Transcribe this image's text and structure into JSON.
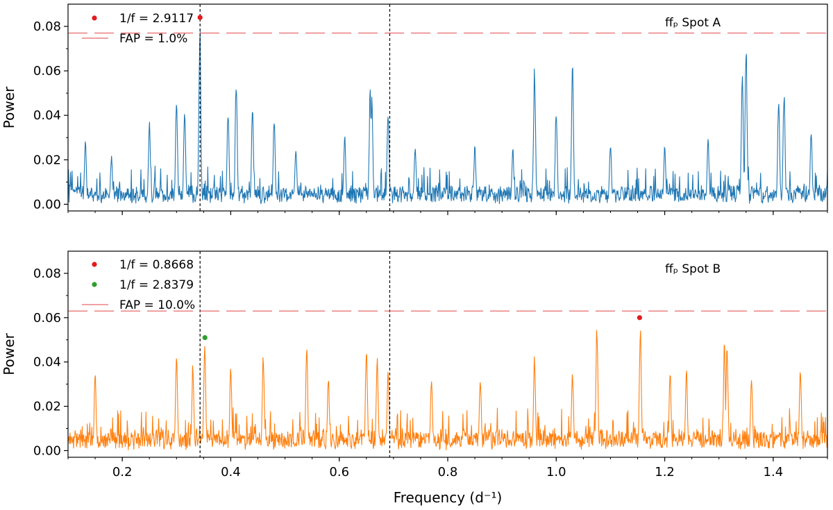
{
  "chart_data": [
    {
      "type": "line",
      "panel": "top",
      "annotation": "ffₚ Spot A",
      "ylabel": "Power",
      "xlabel": "",
      "xlim": [
        0.1,
        1.5
      ],
      "ylim": [
        -0.003,
        0.09
      ],
      "yticks": [
        0.0,
        0.02,
        0.04,
        0.06,
        0.08
      ],
      "ytick_labels": [
        "0.00",
        "0.02",
        "0.04",
        "0.06",
        "0.08"
      ],
      "show_xtick_labels": false,
      "series": [
        {
          "color": "#1f77b4",
          "baseline": 0.007,
          "noise_amp": 0.007,
          "seed": 11,
          "peaks": [
            [
              0.132,
              0.03
            ],
            [
              0.18,
              0.022
            ],
            [
              0.25,
              0.038
            ],
            [
              0.3,
              0.048
            ],
            [
              0.315,
              0.045
            ],
            [
              0.343,
              0.084
            ],
            [
              0.395,
              0.045
            ],
            [
              0.41,
              0.059
            ],
            [
              0.44,
              0.044
            ],
            [
              0.48,
              0.042
            ],
            [
              0.52,
              0.028
            ],
            [
              0.61,
              0.032
            ],
            [
              0.657,
              0.053
            ],
            [
              0.66,
              0.049
            ],
            [
              0.69,
              0.045
            ],
            [
              0.74,
              0.028
            ],
            [
              0.85,
              0.028
            ],
            [
              0.92,
              0.027
            ],
            [
              0.96,
              0.066
            ],
            [
              1.0,
              0.046
            ],
            [
              1.03,
              0.065
            ],
            [
              1.1,
              0.03
            ],
            [
              1.2,
              0.028
            ],
            [
              1.28,
              0.032
            ],
            [
              1.343,
              0.063
            ],
            [
              1.35,
              0.075
            ],
            [
              1.41,
              0.05
            ],
            [
              1.42,
              0.054
            ],
            [
              1.47,
              0.037
            ]
          ]
        }
      ],
      "vlines": [
        0.3434,
        0.6931
      ],
      "fap_level": 0.077,
      "markers": [
        {
          "x": 0.3434,
          "y": 0.084,
          "color": "#e41a1c"
        }
      ],
      "legend": [
        {
          "kind": "dot",
          "color": "#e41a1c",
          "label": "1/f = 2.9117"
        },
        {
          "kind": "line",
          "color": "#e8696b",
          "label": "FAP = 1.0%"
        }
      ]
    },
    {
      "type": "line",
      "panel": "bottom",
      "annotation": "ffₚ Spot B",
      "ylabel": "Power",
      "xlabel": "Frequency (d⁻¹)",
      "xlim": [
        0.1,
        1.5
      ],
      "ylim": [
        -0.003,
        0.09
      ],
      "yticks": [
        0.0,
        0.02,
        0.04,
        0.06,
        0.08
      ],
      "ytick_labels": [
        "0.00",
        "0.02",
        "0.04",
        "0.06",
        "0.08"
      ],
      "xticks": [
        0.2,
        0.4,
        0.6,
        0.8,
        1.0,
        1.2,
        1.4
      ],
      "xtick_labels": [
        "0.2",
        "0.4",
        "0.6",
        "0.8",
        "1.0",
        "1.2",
        "1.4"
      ],
      "show_xtick_labels": true,
      "series": [
        {
          "color": "#ff7f0e",
          "baseline": 0.008,
          "noise_amp": 0.008,
          "seed": 29,
          "peaks": [
            [
              0.15,
              0.036
            ],
            [
              0.3,
              0.045
            ],
            [
              0.33,
              0.04
            ],
            [
              0.352,
              0.051
            ],
            [
              0.4,
              0.04
            ],
            [
              0.46,
              0.046
            ],
            [
              0.54,
              0.049
            ],
            [
              0.58,
              0.035
            ],
            [
              0.65,
              0.047
            ],
            [
              0.67,
              0.043
            ],
            [
              0.69,
              0.038
            ],
            [
              0.77,
              0.035
            ],
            [
              0.86,
              0.036
            ],
            [
              0.96,
              0.045
            ],
            [
              1.03,
              0.037
            ],
            [
              1.075,
              0.058
            ],
            [
              1.155,
              0.06
            ],
            [
              1.21,
              0.037
            ],
            [
              1.24,
              0.038
            ],
            [
              1.31,
              0.05
            ],
            [
              1.315,
              0.049
            ],
            [
              1.36,
              0.036
            ],
            [
              1.45,
              0.04
            ]
          ]
        }
      ],
      "vlines": [
        0.3434,
        0.6931
      ],
      "fap_level": 0.063,
      "markers": [
        {
          "x": 1.1537,
          "y": 0.06,
          "color": "#e41a1c"
        },
        {
          "x": 0.3524,
          "y": 0.051,
          "color": "#2ca02c"
        }
      ],
      "legend": [
        {
          "kind": "dot",
          "color": "#e41a1c",
          "label": "1/f = 0.8668"
        },
        {
          "kind": "dot",
          "color": "#2ca02c",
          "label": "1/f = 2.8379"
        },
        {
          "kind": "line",
          "color": "#e8696b",
          "label": "FAP = 10.0%"
        }
      ]
    }
  ]
}
